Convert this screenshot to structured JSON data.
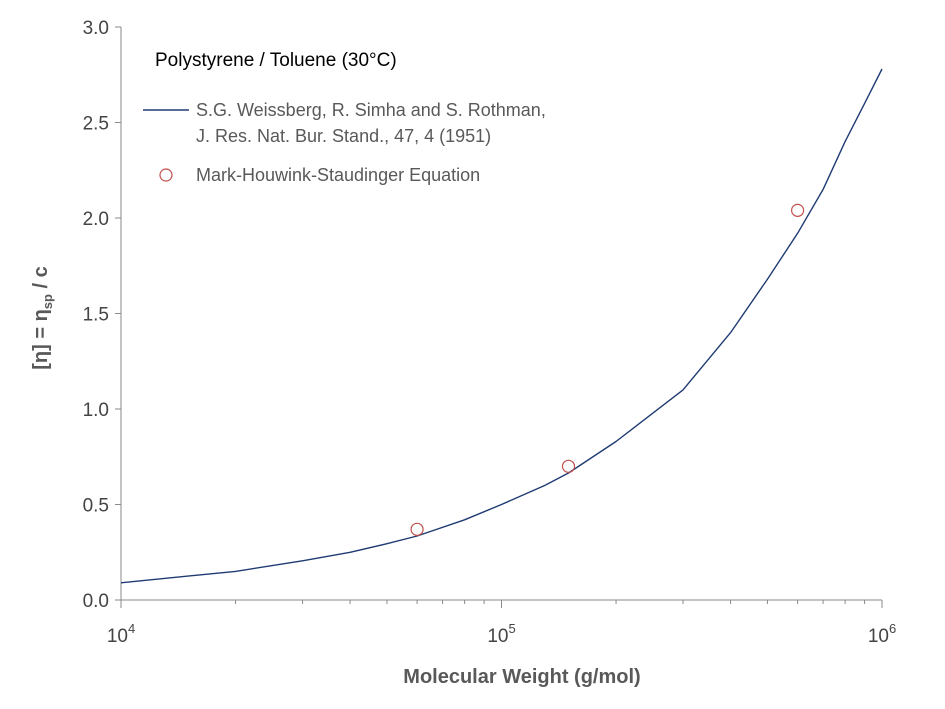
{
  "chart_data": {
    "type": "line",
    "title": "Polystyrene / Toluene (30°C)",
    "xlabel": "Molecular Weight (g/mol)",
    "ylabel": {
      "prefix": "[η] = η",
      "subscript": "sp",
      "suffix": " / c"
    },
    "x_scale": "log",
    "xlim": [
      10000,
      1000000
    ],
    "ylim": [
      0,
      3.0
    ],
    "grid": false,
    "legend_position": "top-left",
    "x_tick_labels": [
      {
        "value": 10000,
        "base": "10",
        "exp": "4"
      },
      {
        "value": 100000,
        "base": "10",
        "exp": "5"
      },
      {
        "value": 1000000,
        "base": "10",
        "exp": "6"
      }
    ],
    "y_tick_labels": [
      "0.0",
      "0.5",
      "1.0",
      "1.5",
      "2.0",
      "2.5",
      "3.0"
    ],
    "y_ticks": [
      0,
      0.5,
      1.0,
      1.5,
      2.0,
      2.5,
      3.0
    ],
    "series": [
      {
        "name_lines": [
          "S.G. Weissberg, R. Simha and S. Rothman,",
          "J. Res. Nat. Bur. Stand., 47, 4 (1951)"
        ],
        "style": "line",
        "color": "#1F3B73",
        "x": [
          10000,
          15000,
          20000,
          30000,
          40000,
          50000,
          60000,
          80000,
          100000,
          130000,
          150000,
          200000,
          300000,
          400000,
          500000,
          600000,
          700000,
          800000,
          900000,
          1000000
        ],
        "y": [
          0.09,
          0.125,
          0.15,
          0.205,
          0.25,
          0.295,
          0.335,
          0.42,
          0.5,
          0.6,
          0.665,
          0.83,
          1.1,
          1.4,
          1.68,
          1.92,
          2.15,
          2.4,
          2.6,
          2.78
        ]
      },
      {
        "name": "Mark-Houwink-Staudinger Equation",
        "style": "marker",
        "marker": "open-circle",
        "color": "#C0504D",
        "x": [
          60000,
          150000,
          600000
        ],
        "y": [
          0.37,
          0.7,
          2.04
        ]
      }
    ]
  }
}
